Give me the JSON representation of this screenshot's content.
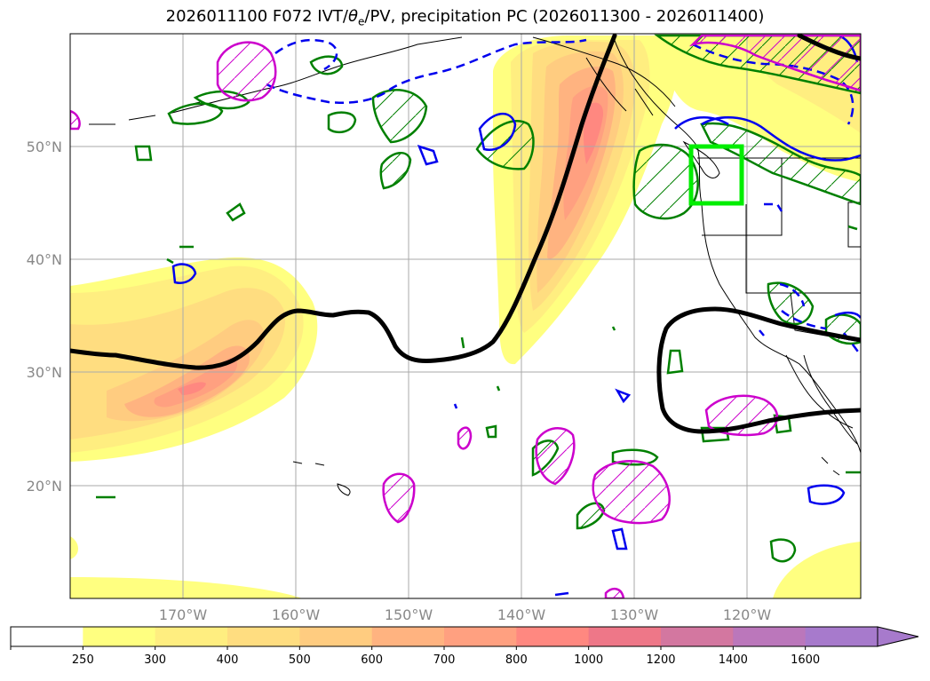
{
  "title": {
    "prefix": "2026011100 F072 IVT/",
    "theta": "θ",
    "sub": "e",
    "suffix": "/PV, precipitation PC (2026011300 - 2026011400)"
  },
  "axes": {
    "lat_labels": [
      "50°N",
      "40°N",
      "30°N",
      "20°N"
    ],
    "lon_labels": [
      "170°W",
      "160°W",
      "150°W",
      "140°W",
      "130°W",
      "120°W"
    ],
    "lat_values": [
      50,
      40,
      30,
      20
    ],
    "lon_values": [
      -170,
      -160,
      -150,
      -140,
      -130,
      -120
    ],
    "lon_range": [
      -180,
      -110
    ],
    "lat_range": [
      10,
      60
    ]
  },
  "colorbar": {
    "levels": [
      "250",
      "300",
      "400",
      "500",
      "600",
      "700",
      "800",
      "1000",
      "1200",
      "1400",
      "1600"
    ],
    "colors": [
      "#ffffff",
      "#ffff80",
      "#ffee80",
      "#ffdd80",
      "#ffcc80",
      "#ffb380",
      "#ffa080",
      "#ff8880",
      "#ee7788",
      "#d377a0",
      "#bb77bb",
      "#a77acc"
    ],
    "extend": "max"
  },
  "region_box": {
    "lon_min": -125,
    "lon_max": -120.5,
    "lat_min": 45,
    "lat_max": 50,
    "color": "#00ee00"
  },
  "colors": {
    "pv_contour": "#000000",
    "precip_contour": "#008000",
    "theta_e_contour": "#0000ee",
    "theta_e_hatch": "#cc00cc",
    "coast": "#000000",
    "grid": "#aaaaaa"
  }
}
